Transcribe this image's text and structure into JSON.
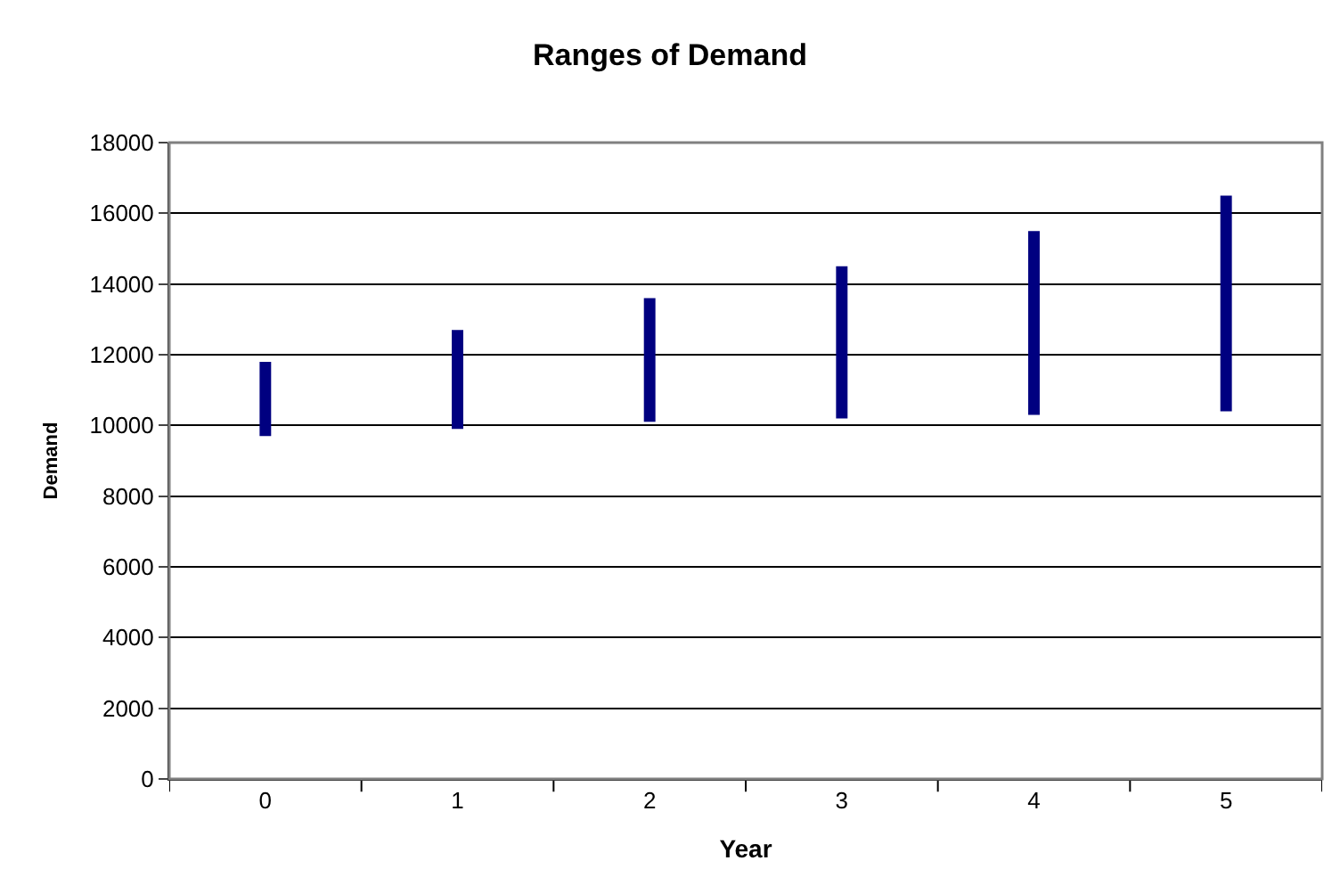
{
  "chart_data": {
    "type": "bar",
    "title": "Ranges of Demand",
    "xlabel": "Year",
    "ylabel": "Demand",
    "categories": [
      "0",
      "1",
      "2",
      "3",
      "4",
      "5"
    ],
    "base": [
      9700,
      9900,
      10100,
      10200,
      10300,
      10400
    ],
    "values": [
      2100,
      2800,
      3500,
      4300,
      5200,
      6100
    ],
    "color": "#000080",
    "ylim": [
      0,
      18000
    ],
    "yticks": [
      0,
      2000,
      4000,
      6000,
      8000,
      10000,
      12000,
      14000,
      16000,
      18000
    ],
    "grid": "y"
  }
}
